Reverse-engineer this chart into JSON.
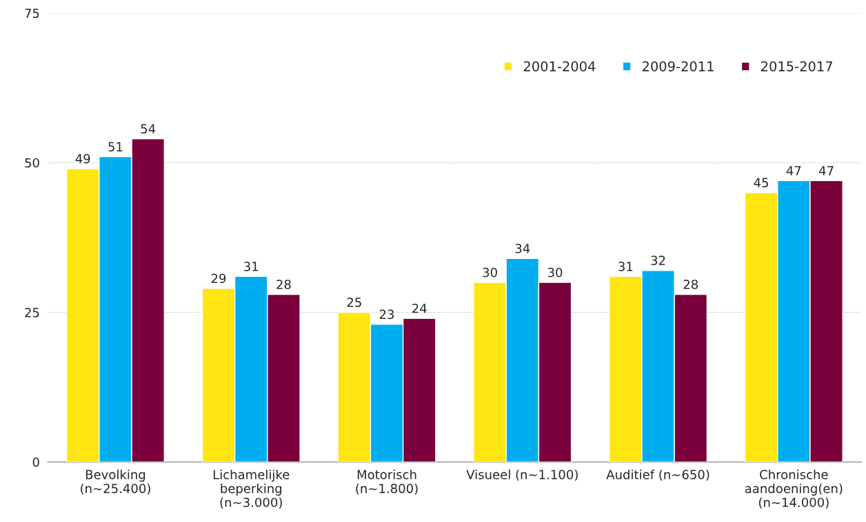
{
  "chart_data": {
    "type": "bar",
    "categories": [
      "Bevolking\n(n~25.400)",
      "Lichamelijke\nbeperking\n(n~3.000)",
      "Motorisch\n(n~1.800)",
      "Visueel (n~1.100)",
      "Auditief (n~650)",
      "Chronische\naandoening(en)\n(n~14.000)"
    ],
    "series": [
      {
        "name": "2001-2004",
        "color": "#ffe512",
        "values": [
          49,
          29,
          25,
          30,
          31,
          45
        ]
      },
      {
        "name": "2009-2011",
        "color": "#00aeef",
        "values": [
          51,
          31,
          23,
          34,
          32,
          47
        ]
      },
      {
        "name": "2015-2017",
        "color": "#7a003c",
        "values": [
          54,
          28,
          24,
          30,
          28,
          47
        ]
      }
    ],
    "ylim": [
      0,
      75
    ],
    "yticks": [
      0,
      25,
      50,
      75
    ],
    "grid": "y",
    "legend": "top right",
    "data_labels": true
  }
}
